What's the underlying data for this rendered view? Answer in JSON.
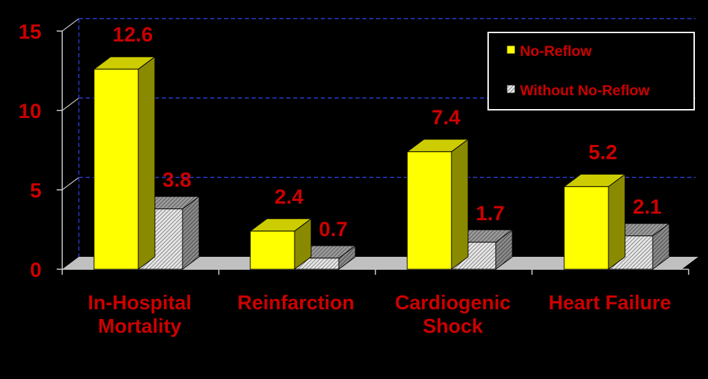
{
  "chart_data": {
    "type": "bar",
    "categories": [
      "In-Hospital\nMortality",
      "Reinfarction",
      "Cardiogenic\nShock",
      "Heart Failure"
    ],
    "series": [
      {
        "name": "No-Reflow",
        "values": [
          12.6,
          2.4,
          7.4,
          5.2
        ],
        "data_labels": [
          "12.6",
          "2.4",
          "7.4",
          "5.2"
        ]
      },
      {
        "name": "Without No-Reflow",
        "values": [
          3.8,
          0.7,
          1.7,
          2.1
        ],
        "data_labels": [
          "3.8",
          "0.7",
          "1.7",
          "2.1"
        ]
      }
    ],
    "yticks": [
      0,
      5,
      10,
      15
    ],
    "ylim": [
      0,
      15
    ],
    "grid": true,
    "legend_position": "top-right",
    "three_d": true
  },
  "colors": {
    "background": "#000000",
    "text": "#cc0000",
    "grid": "#2b3fd6",
    "axis": "#c8c8c8",
    "floor": "#c0c0c0",
    "no_reflow_front": "#ffff00",
    "no_reflow_side": "#8a8a00",
    "no_reflow_top": "#cccc00",
    "without_front": "#d9d9d9",
    "without_side": "#808080",
    "without_top": "#a6a6a6"
  }
}
